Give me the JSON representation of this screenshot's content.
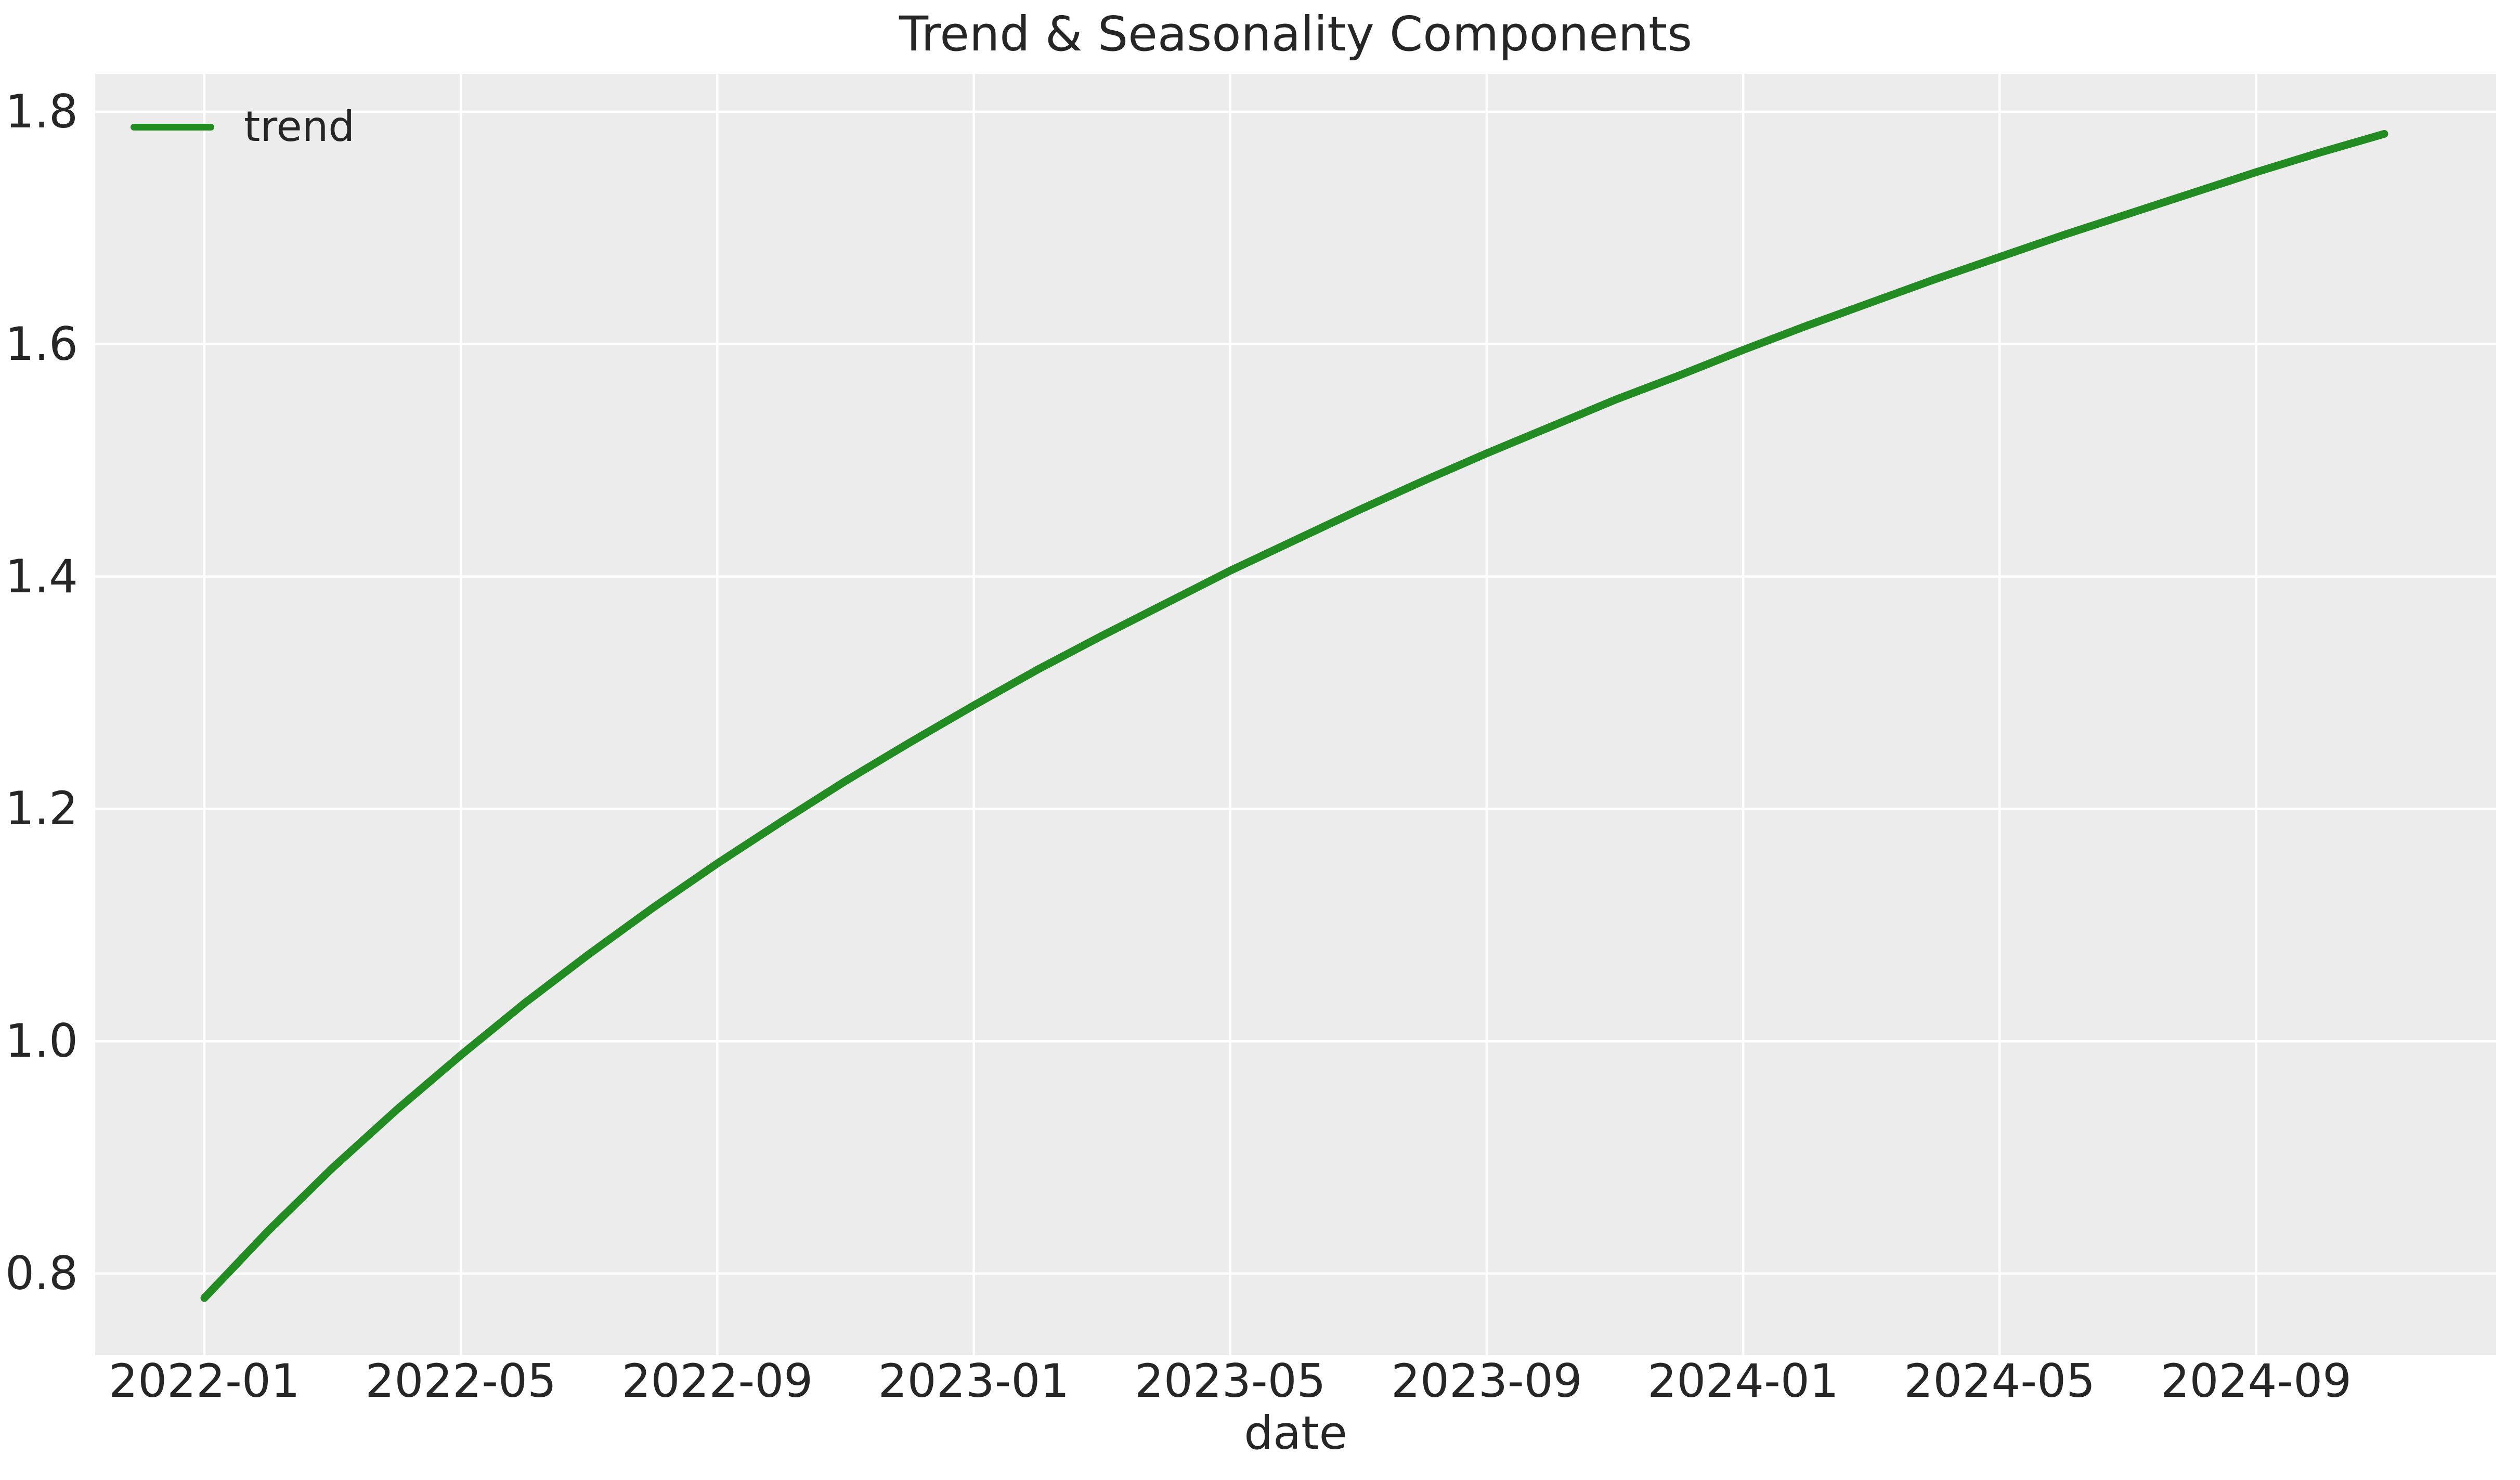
{
  "title": "Trend & Seasonality Components",
  "colors": {
    "figure_bg": "#ffffff",
    "plot_bg": "#ececec",
    "grid": "#ffffff",
    "text": "#262626",
    "trend_line": "#228b22"
  },
  "legend": {
    "position": "upper left",
    "items": [
      {
        "label": "trend",
        "color": "#228b22"
      }
    ]
  },
  "axes": {
    "xlabel": "date",
    "ylabel": "",
    "x_tick_labels": [
      "2022-01",
      "2022-05",
      "2022-09",
      "2023-01",
      "2023-05",
      "2023-09",
      "2024-01",
      "2024-05",
      "2024-09"
    ],
    "y_tick_labels": [
      "0.8",
      "1.0",
      "1.2",
      "1.4",
      "1.6",
      "1.8"
    ]
  },
  "chart_data": {
    "type": "line",
    "title": "Trend & Seasonality Components",
    "xlabel": "date",
    "ylabel": "",
    "grid": true,
    "legend_position": "upper left",
    "xlim": [
      "2021-11",
      "2025-01"
    ],
    "ylim": [
      0.729,
      1.826
    ],
    "x": [
      "2022-01",
      "2022-02",
      "2022-03",
      "2022-04",
      "2022-05",
      "2022-06",
      "2022-07",
      "2022-08",
      "2022-09",
      "2022-10",
      "2022-11",
      "2022-12",
      "2023-01",
      "2023-02",
      "2023-03",
      "2023-04",
      "2023-05",
      "2023-06",
      "2023-07",
      "2023-08",
      "2023-09",
      "2023-10",
      "2023-11",
      "2023-12",
      "2024-01",
      "2024-02",
      "2024-03",
      "2024-04",
      "2024-05",
      "2024-06",
      "2024-07",
      "2024-08",
      "2024-09",
      "2024-10",
      "2024-11"
    ],
    "series": [
      {
        "name": "trend",
        "color": "#228b22",
        "values": [
          0.779,
          0.837,
          0.891,
          0.941,
          0.988,
          1.033,
          1.075,
          1.115,
          1.153,
          1.189,
          1.224,
          1.257,
          1.289,
          1.32,
          1.349,
          1.377,
          1.405,
          1.431,
          1.457,
          1.482,
          1.506,
          1.529,
          1.552,
          1.573,
          1.595,
          1.616,
          1.636,
          1.656,
          1.675,
          1.694,
          1.712,
          1.73,
          1.748,
          1.765,
          1.781
        ]
      }
    ],
    "y_ticks": [
      0.8,
      1.0,
      1.2,
      1.4,
      1.6,
      1.8
    ]
  }
}
